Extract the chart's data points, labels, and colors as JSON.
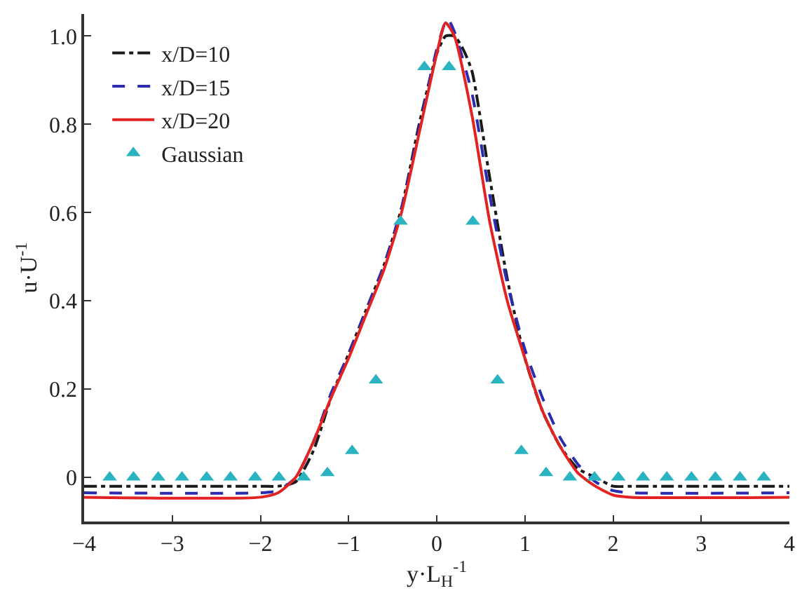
{
  "chart_data": {
    "type": "line",
    "xlabel": "y·L$_{H}$$^{-1}$",
    "ylabel": "u·U$^{-1}$",
    "xlim": [
      -4,
      4
    ],
    "xticks": [
      -4,
      -3,
      -2,
      -1,
      0,
      1,
      2,
      3,
      4
    ],
    "ylim": [
      -0.1,
      1.05
    ],
    "yticks": [
      0,
      0.2,
      0.4,
      0.6,
      0.8,
      {
        "value": 1,
        "label": "1.0"
      }
    ],
    "legend": "top left",
    "series": [
      {
        "name": "x/D=10",
        "color": "#1a1a1a",
        "line_style": "dashdot",
        "x": [
          -4,
          -2,
          -1.8,
          -1.6,
          -1.4,
          -1.2,
          -1.0,
          -0.8,
          -0.6,
          -0.4,
          -0.2,
          0,
          0.1,
          0.2,
          0.3,
          0.4,
          0.6,
          0.8,
          1.0,
          1.2,
          1.4,
          1.6,
          1.8,
          2.0,
          2.2,
          4
        ],
        "values": [
          -0.02,
          -0.02,
          -0.02,
          -0.01,
          0.06,
          0.18,
          0.28,
          0.38,
          0.48,
          0.61,
          0.8,
          0.96,
          1.0,
          1.0,
          0.97,
          0.92,
          0.68,
          0.45,
          0.27,
          0.15,
          0.07,
          0.02,
          0.0,
          -0.02,
          -0.02,
          -0.02
        ]
      },
      {
        "name": "x/D=15",
        "color": "#2b2bb0",
        "line_style": "dashed",
        "x": [
          -4,
          -2,
          -1.8,
          -1.6,
          -1.4,
          -1.2,
          -1.0,
          -0.8,
          -0.6,
          -0.4,
          -0.2,
          0,
          0.12,
          0.2,
          0.4,
          0.6,
          0.8,
          1.0,
          1.2,
          1.4,
          1.6,
          1.8,
          2.0,
          2.2,
          4
        ],
        "values": [
          -0.035,
          -0.035,
          -0.03,
          0.0,
          0.08,
          0.19,
          0.28,
          0.38,
          0.48,
          0.61,
          0.79,
          0.97,
          1.04,
          1.01,
          0.87,
          0.64,
          0.44,
          0.29,
          0.18,
          0.09,
          0.03,
          -0.01,
          -0.03,
          -0.035,
          -0.035
        ]
      },
      {
        "name": "x/D=20",
        "color": "#e32222",
        "line_style": "solid",
        "x": [
          -4,
          -2,
          -1.8,
          -1.6,
          -1.4,
          -1.2,
          -1.0,
          -0.8,
          -0.6,
          -0.4,
          -0.2,
          0,
          0.1,
          0.2,
          0.4,
          0.6,
          0.8,
          1.0,
          1.2,
          1.4,
          1.6,
          1.8,
          2.0,
          2.2,
          4
        ],
        "values": [
          -0.045,
          -0.045,
          -0.035,
          0.0,
          0.08,
          0.18,
          0.27,
          0.37,
          0.47,
          0.6,
          0.78,
          0.96,
          1.03,
          1.0,
          0.82,
          0.58,
          0.4,
          0.27,
          0.15,
          0.07,
          0.01,
          -0.02,
          -0.04,
          -0.045,
          -0.045
        ]
      },
      {
        "name": "Gaussian",
        "type": "scatter",
        "marker": "triangle",
        "color": "#2ab3c0",
        "x": [
          -3.71,
          -3.44,
          -3.16,
          -2.89,
          -2.61,
          -2.34,
          -2.06,
          -1.79,
          -1.51,
          -1.24,
          -0.96,
          -0.69,
          -0.41,
          -0.14,
          0.14,
          0.41,
          0.69,
          0.96,
          1.24,
          1.51,
          1.79,
          2.06,
          2.34,
          2.61,
          2.89,
          3.16,
          3.44,
          3.71
        ],
        "values": [
          0,
          0,
          0,
          0,
          0,
          0,
          0,
          0,
          0,
          0.01,
          0.06,
          0.22,
          0.58,
          0.93,
          0.93,
          0.58,
          0.22,
          0.06,
          0.01,
          0,
          0,
          0,
          0,
          0,
          0,
          0,
          0,
          0
        ]
      }
    ]
  }
}
